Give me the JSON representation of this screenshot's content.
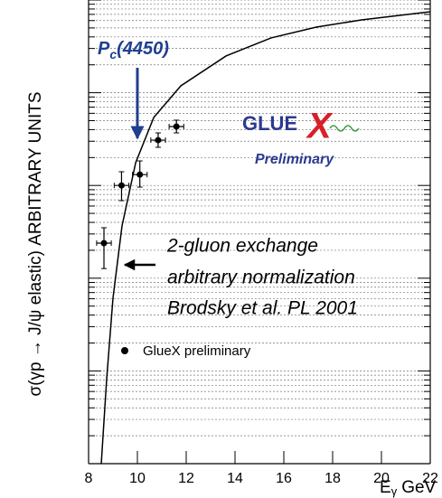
{
  "chart_data": {
    "type": "scatter",
    "y_label": "σ(γp → J/ψ elastic) ARBITRARY UNITS",
    "x_label": {
      "main": "E",
      "sub": "γ",
      "unit": "GeV"
    },
    "xlim": [
      8,
      22
    ],
    "xticks": [
      8,
      10,
      12,
      14,
      16,
      18,
      20,
      22
    ],
    "ylim": [
      0.1,
      10000
    ],
    "log_y": true,
    "grid": true,
    "series": [
      {
        "name": "GlueX preliminary",
        "color": "#000000",
        "x": [
          8.63,
          9.35,
          10.1,
          10.85,
          11.6
        ],
        "values": [
          23.9,
          100,
          131,
          308,
          432
        ],
        "y_low": [
          12.7,
          68.6,
          96,
          258,
          369
        ],
        "y_high": [
          35,
          140.6,
          184,
          369,
          506
        ],
        "xerr": [
          0.3,
          0.3,
          0.3,
          0.3,
          0.3
        ]
      }
    ],
    "curve": {
      "color": "#000000",
      "x": [
        8.52,
        8.74,
        9.0,
        9.37,
        9.93,
        10.67,
        11.78,
        13.63,
        15.48,
        17.33,
        19.19,
        22
      ],
      "values": [
        0.1,
        0.81,
        6.1,
        36.6,
        176,
        541,
        1186,
        2490,
        3900,
        5100,
        6100,
        7470
      ]
    },
    "annotations": {
      "pc": {
        "main": "P",
        "sub": "c",
        "rest": "(4450)",
        "color": "#1f3f8f"
      },
      "model": [
        "2-gluon exchange",
        "arbitrary normalization",
        "Brodsky et al. PL 2001"
      ]
    },
    "logo": {
      "text": "GLUE",
      "x": "X",
      "subtitle": "Preliminary"
    }
  }
}
